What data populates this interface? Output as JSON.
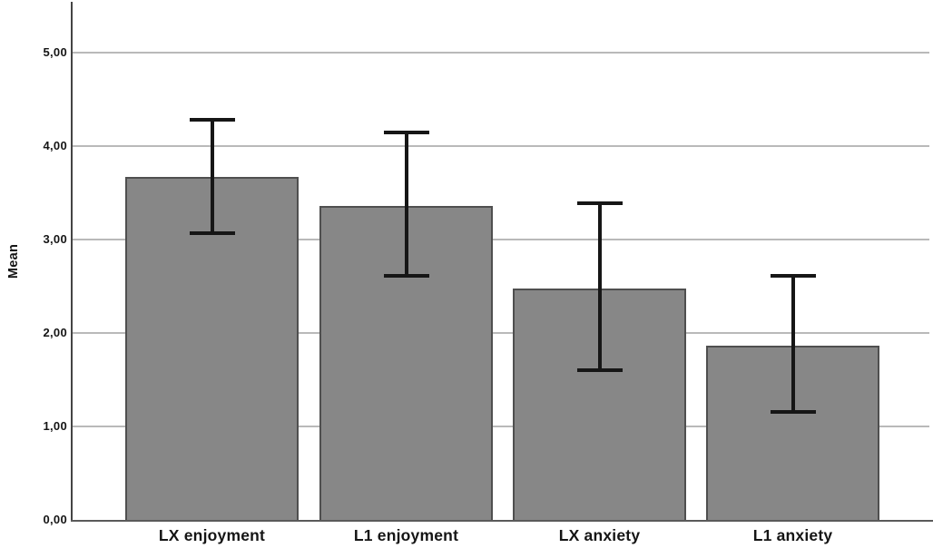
{
  "chart_data": {
    "type": "bar",
    "title": "",
    "xlabel": "",
    "ylabel": "Mean",
    "categories": [
      "LX enjoyment",
      "L1 enjoyment",
      "LX anxiety",
      "L1 anxiety"
    ],
    "values": [
      3.67,
      3.36,
      2.48,
      1.86
    ],
    "error_bars": {
      "upper": [
        4.28,
        4.15,
        3.39,
        2.61
      ],
      "lower": [
        3.07,
        2.61,
        1.6,
        1.16
      ]
    },
    "ylim": [
      0,
      5.55
    ],
    "yticks": [
      {
        "value": 0,
        "label": "0,00"
      },
      {
        "value": 1,
        "label": "1,00"
      },
      {
        "value": 2,
        "label": "2,00"
      },
      {
        "value": 3,
        "label": "3,00"
      },
      {
        "value": 4,
        "label": "4,00"
      },
      {
        "value": 5,
        "label": "5,00"
      }
    ],
    "grid": "horizontal",
    "legend": "none",
    "colors": {
      "bar_fill": "#878787",
      "bar_border": "#4f4f4f",
      "gridline": "#b9b9b9",
      "axis_y": "#454545",
      "axis_x": "#5a5a5a",
      "error_bar": "#161616",
      "text": "#151515",
      "background": "#ffffff"
    }
  }
}
